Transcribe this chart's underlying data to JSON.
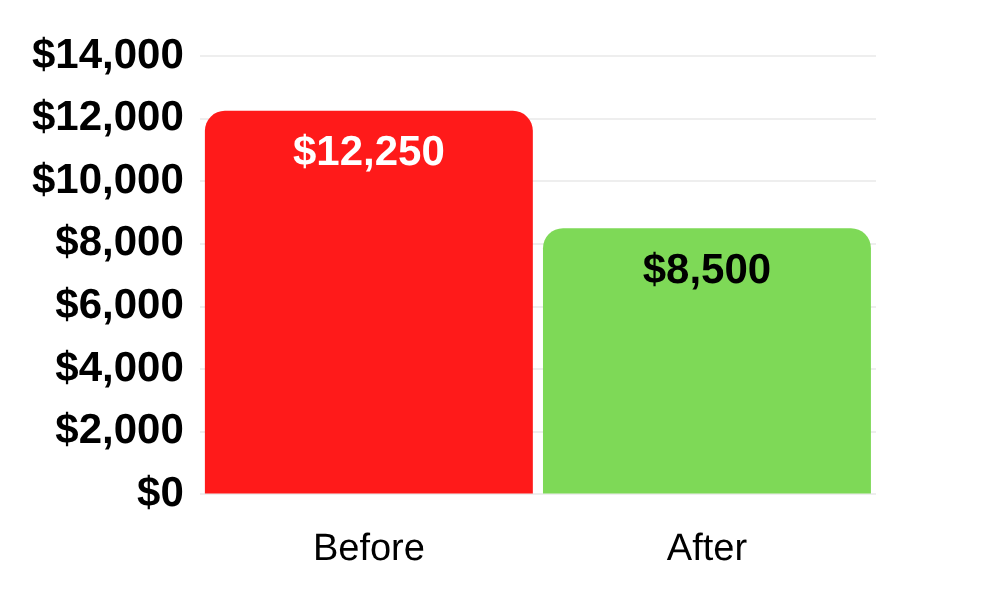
{
  "chart_data": {
    "type": "bar",
    "categories": [
      "Before",
      "After"
    ],
    "values": [
      12250,
      8500
    ],
    "colors": [
      "#ff1a1a",
      "#7ed957"
    ],
    "ylim": [
      0,
      14000
    ],
    "yticks": [
      {
        "value": 0,
        "label": "$0"
      },
      {
        "value": 2000,
        "label": "$2,000"
      },
      {
        "value": 4000,
        "label": "$4,000"
      },
      {
        "value": 6000,
        "label": "$6,000"
      },
      {
        "value": 8000,
        "label": "$8,000"
      },
      {
        "value": 10000,
        "label": "$10,000"
      },
      {
        "value": 12000,
        "label": "$12,000"
      },
      {
        "value": 14000,
        "label": "$14,000"
      }
    ],
    "value_labels": [
      "$12,250",
      "$8,500"
    ],
    "grid": "y",
    "legend": false
  }
}
